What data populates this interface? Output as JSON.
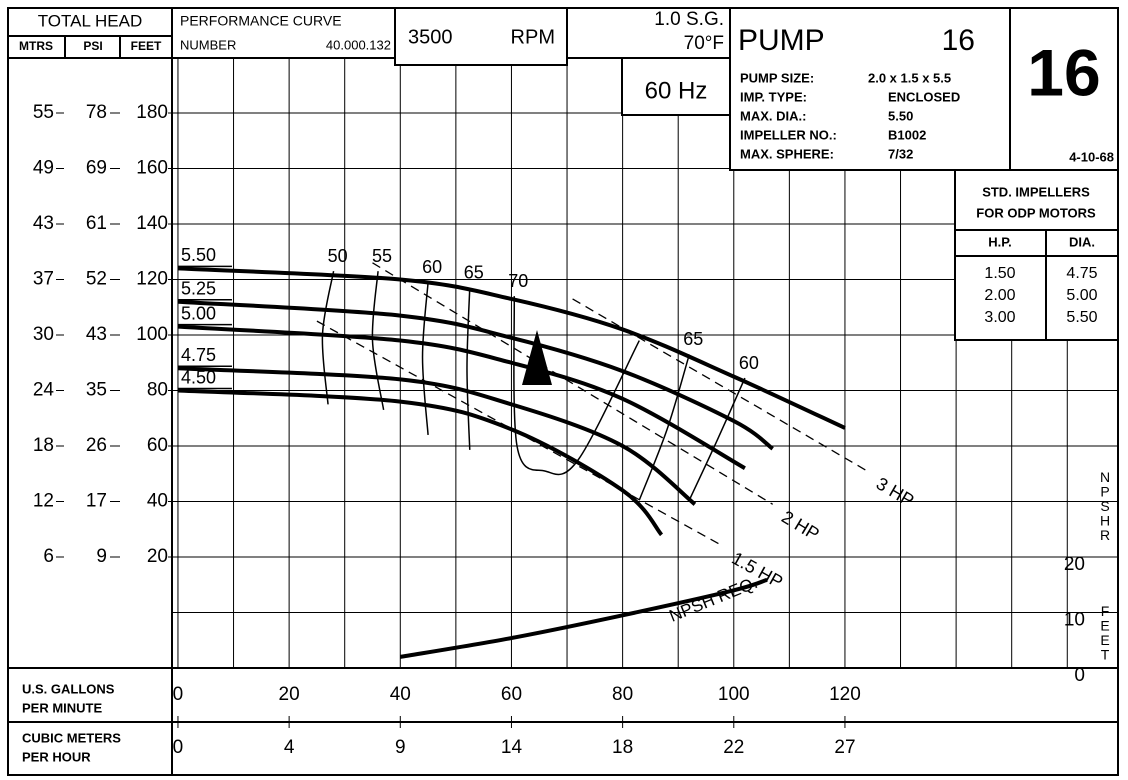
{
  "header": {
    "total_head": "TOTAL HEAD",
    "mtrs": "MTRS",
    "psi": "PSI",
    "feet": "FEET",
    "performance_curve": "PERFORMANCE CURVE",
    "number_label": "NUMBER",
    "number": "40.000.132",
    "rpm": "3500",
    "rpm_unit": "RPM",
    "sg": "1.0 S.G.",
    "temp": "70°F",
    "hz": "60 Hz",
    "pump_label": "PUMP",
    "pump_no": "16",
    "big_no": "16",
    "date": "4-10-68",
    "specs": [
      {
        "label": "PUMP SIZE:",
        "value": "2.0 x 1.5 x 5.5"
      },
      {
        "label": "IMP. TYPE:",
        "value": "ENCLOSED"
      },
      {
        "label": "MAX. DIA.:",
        "value": "5.50"
      },
      {
        "label": "IMPELLER NO.:",
        "value": "B1002"
      },
      {
        "label": "MAX. SPHERE:",
        "value": "7/32"
      }
    ]
  },
  "impeller_table": {
    "title": [
      "STD.  IMPELLERS",
      "FOR ODP MOTORS"
    ],
    "columns": [
      "H.P.",
      "DIA."
    ],
    "rows": [
      [
        "1.50",
        "4.75"
      ],
      [
        "2.00",
        "5.00"
      ],
      [
        "3.00",
        "5.50"
      ]
    ]
  },
  "chart_data": {
    "type": "line",
    "x_label": [
      "U.S. GALLONS",
      "PER MINUTE"
    ],
    "x2_label": [
      "CUBIC METERS",
      "PER HOUR"
    ],
    "xlim": [
      -1,
      169
    ],
    "xticks": [
      0,
      20,
      40,
      60,
      80,
      100,
      120
    ],
    "x2ticks": [
      0,
      4,
      9,
      14,
      18,
      22,
      27
    ],
    "ylim": [
      -20,
      200
    ],
    "yticks": [
      20,
      40,
      60,
      80,
      100,
      120,
      140,
      160,
      180
    ],
    "yticks_psi": [
      9,
      17,
      26,
      35,
      43,
      52,
      61,
      69,
      78
    ],
    "yticks_mtrs": [
      6,
      12,
      18,
      24,
      30,
      37,
      43,
      49,
      55
    ],
    "y2lim": [
      0,
      110
    ],
    "y2ticks": [
      0,
      10,
      20
    ],
    "y2_label": "NPSHR",
    "y2_unit": "FEET",
    "grid": true,
    "series": [
      {
        "name": "5.50",
        "color": "#000000",
        "x": [
          0,
          40,
          60,
          80,
          100,
          120
        ],
        "values": [
          124,
          120,
          113,
          102,
          85,
          66.5
        ]
      },
      {
        "name": "5.25",
        "color": "#000000",
        "x": [
          0,
          40,
          60,
          80,
          100,
          107
        ],
        "values": [
          112,
          107,
          99,
          87,
          69,
          59
        ]
      },
      {
        "name": "5.00",
        "color": "#000000",
        "x": [
          0,
          40,
          60,
          80,
          102
        ],
        "values": [
          103,
          98,
          90,
          77,
          52
        ]
      },
      {
        "name": "4.75",
        "color": "#000000",
        "x": [
          0,
          40,
          60,
          80,
          93
        ],
        "values": [
          88,
          84,
          75,
          60,
          39
        ]
      },
      {
        "name": "4.50",
        "color": "#000000",
        "x": [
          0,
          40,
          60,
          80,
          87
        ],
        "values": [
          80,
          76,
          66,
          44,
          28
        ]
      },
      {
        "name": "NPSH REQ.",
        "color": "#000000",
        "axis": "y2",
        "x": [
          40,
          60,
          80,
          100,
          106
        ],
        "values": [
          2,
          5.4,
          9.5,
          14,
          15.9
        ]
      }
    ],
    "hp_lines": [
      {
        "name": "3 HP",
        "x": [
          71,
          124
        ],
        "values": [
          113,
          51
        ]
      },
      {
        "name": "2 HP",
        "x": [
          35,
          107
        ],
        "values": [
          126,
          39
        ]
      },
      {
        "name": "1.5 HP",
        "x": [
          25,
          98
        ],
        "values": [
          105,
          24
        ]
      }
    ],
    "efficiency": [
      {
        "name": "50",
        "x": [
          28,
          26,
          27
        ],
        "values": [
          123,
          100,
          75
        ]
      },
      {
        "name": "55",
        "x": [
          36,
          35,
          37
        ],
        "values": [
          123,
          98,
          73
        ]
      },
      {
        "name": "60",
        "x": [
          45,
          44,
          45
        ],
        "values": [
          119,
          92,
          64
        ]
      },
      {
        "name": "65",
        "x": [
          52.5,
          52,
          52.5
        ],
        "values": [
          117,
          88,
          58.6
        ]
      },
      {
        "name": "70",
        "x": [
          60.5,
          61,
          66,
          72,
          83
        ],
        "values": [
          114,
          60,
          51,
          55,
          98
        ]
      },
      {
        "name": "65",
        "x": [
          92,
          88,
          83
        ],
        "values": [
          93,
          66,
          40.5
        ]
      },
      {
        "name": "60",
        "x": [
          102,
          97,
          92
        ],
        "values": [
          84.5,
          62,
          40.5
        ]
      }
    ]
  }
}
